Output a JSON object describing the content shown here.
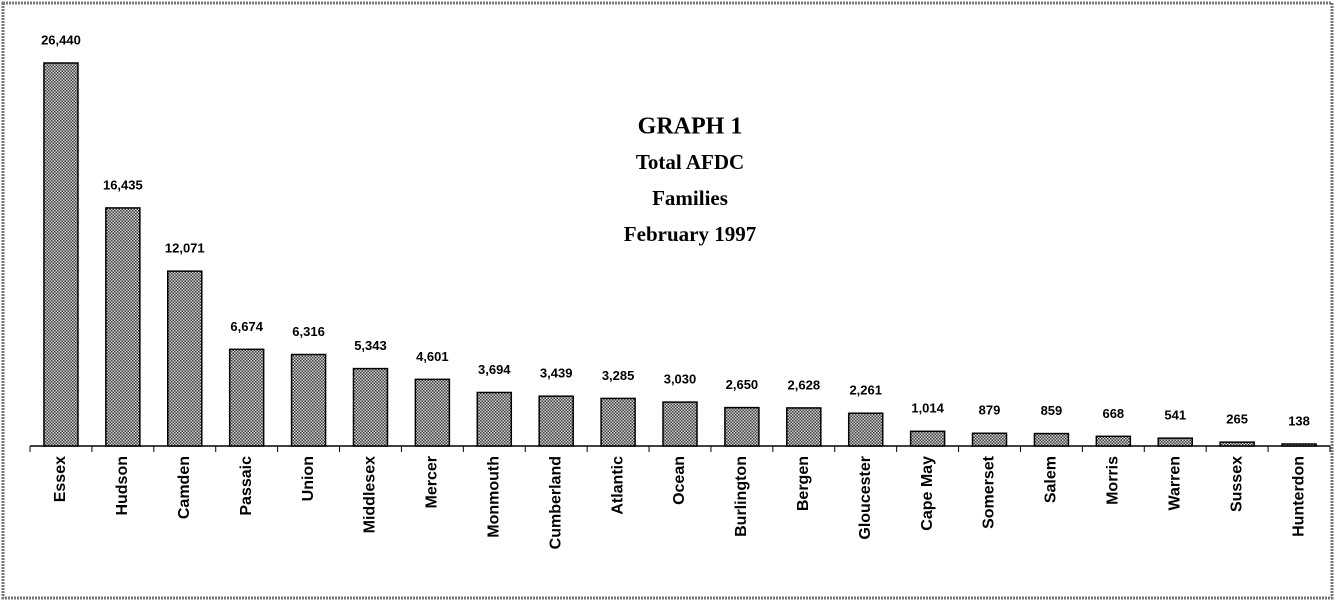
{
  "chart_data": {
    "type": "bar",
    "title": "GRAPH 1",
    "subtitle": [
      "Total AFDC",
      "Families",
      "February 1997"
    ],
    "categories": [
      "Essex",
      "Hudson",
      "Camden",
      "Passaic",
      "Union",
      "Middlesex",
      "Mercer",
      "Monmouth",
      "Cumberland",
      "Atlantic",
      "Ocean",
      "Burlington",
      "Bergen",
      "Gloucester",
      "Cape May",
      "Somerset",
      "Salem",
      "Morris",
      "Warren",
      "Sussex",
      "Hunterdon"
    ],
    "values": [
      26440,
      16435,
      12071,
      6674,
      6316,
      5343,
      4601,
      3694,
      3439,
      3285,
      3030,
      2650,
      2628,
      2261,
      1014,
      879,
      859,
      668,
      541,
      265,
      138
    ],
    "value_labels": [
      "26,440",
      "16,435",
      "12,071",
      "6,674",
      "6,316",
      "5,343",
      "4,601",
      "3,694",
      "3,439",
      "3,285",
      "3,030",
      "2,650",
      "2,628",
      "2,261",
      "1,014",
      "879",
      "859",
      "668",
      "541",
      "265",
      "138"
    ],
    "color": "#8a8a8a"
  }
}
